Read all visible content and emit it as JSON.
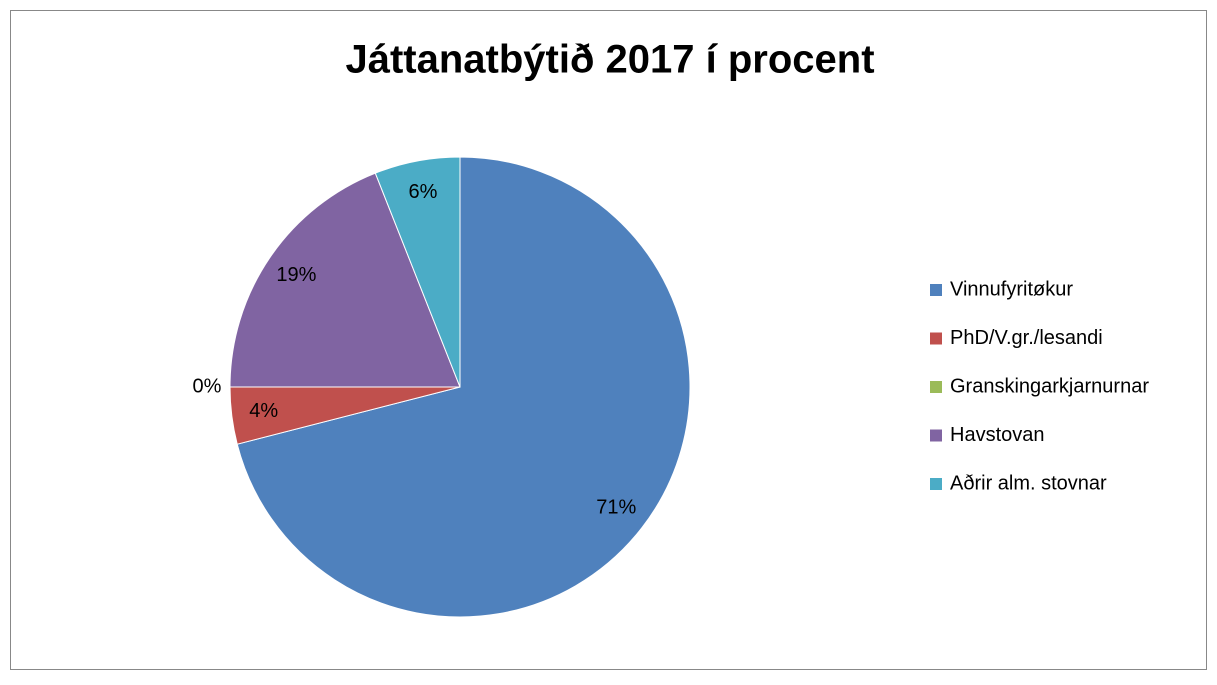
{
  "chart_data": {
    "type": "pie",
    "title": "Játtanatbýtið 2017 í procent",
    "categories": [
      "Vinnufyritøkur",
      "PhD/V.gr./lesandi",
      "Granskingarkjarnurnar",
      "Havstovan",
      "Aðrir alm. stovnar"
    ],
    "values": [
      71,
      4,
      0,
      19,
      6
    ],
    "value_labels": [
      "71%",
      "4%",
      "0%",
      "19%",
      "6%"
    ],
    "colors": [
      "#4f81bd",
      "#c0504d",
      "#9bbb59",
      "#8064a2",
      "#4bacc6"
    ],
    "legend": "right"
  }
}
